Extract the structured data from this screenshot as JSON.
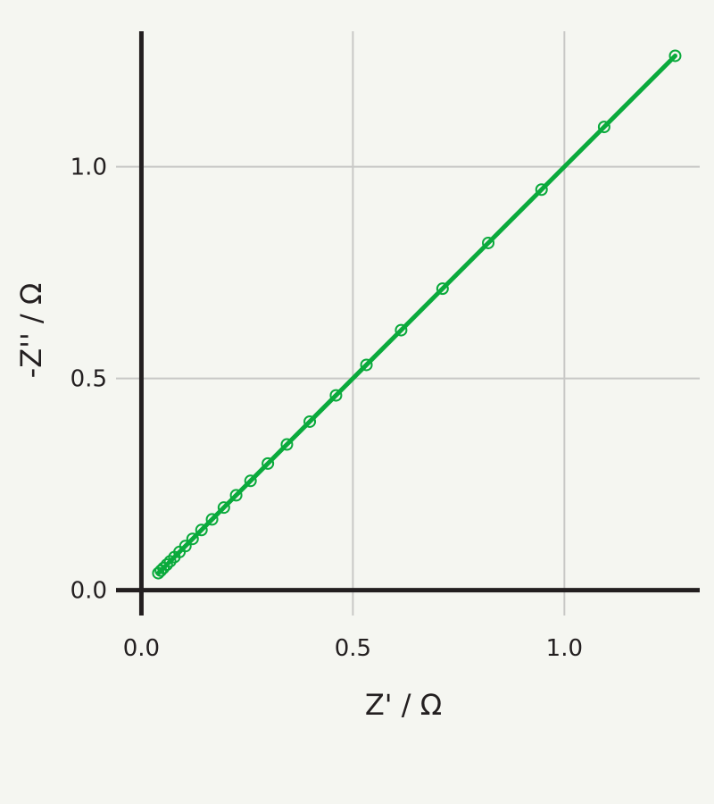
{
  "colors": {
    "background": "#f5f6f1",
    "axis": "#231f20",
    "grid": "#c8c8c6",
    "series": "#0aaa3c"
  },
  "chart_data": {
    "type": "scatter",
    "title": "",
    "xlabel": "Z' / Ω",
    "ylabel": "-Z'' / Ω",
    "xlim": [
      -0.06,
      1.32
    ],
    "ylim": [
      -0.06,
      1.32
    ],
    "xticks": [
      0.0,
      0.5,
      1.0
    ],
    "yticks": [
      0.0,
      0.5,
      1.0
    ],
    "xtick_labels": [
      "0.0",
      "0.5",
      "1.0"
    ],
    "ytick_labels": [
      "0.0",
      "0.5",
      "1.0"
    ],
    "grid": true,
    "series": [
      {
        "marker": "open-circle",
        "line": "solid",
        "x": [
          0.04,
          0.046,
          0.052,
          0.06,
          0.068,
          0.078,
          0.09,
          0.104,
          0.121,
          0.142,
          0.167,
          0.195,
          0.224,
          0.258,
          0.299,
          0.344,
          0.398,
          0.46,
          0.532,
          0.614,
          0.712,
          0.82,
          0.946,
          1.094,
          1.262
        ],
        "y": [
          0.04,
          0.046,
          0.052,
          0.06,
          0.068,
          0.078,
          0.09,
          0.104,
          0.121,
          0.142,
          0.167,
          0.195,
          0.224,
          0.258,
          0.299,
          0.344,
          0.398,
          0.46,
          0.532,
          0.614,
          0.712,
          0.82,
          0.946,
          1.094,
          1.262
        ]
      }
    ]
  }
}
